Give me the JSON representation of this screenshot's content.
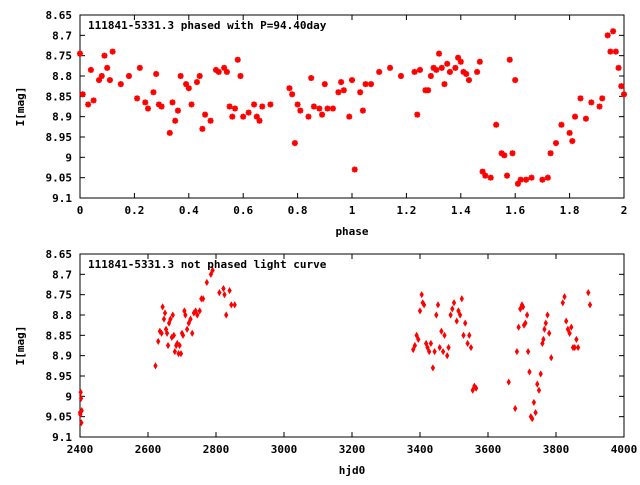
{
  "chart_data": [
    {
      "type": "scatter",
      "title": "111841-5331.3 phased with P=94.40day",
      "xlabel": "phase",
      "ylabel": "I[mag]",
      "xlim": [
        0,
        2
      ],
      "ylim": [
        8.65,
        9.1
      ],
      "y_inverted": true,
      "grid": false,
      "legend": "none",
      "marker": "star",
      "color": "#ff0000",
      "xticks": [
        "0",
        "0.2",
        "0.4",
        "0.6",
        "0.8",
        "1",
        "1.2",
        "1.4",
        "1.6",
        "1.8",
        "2"
      ],
      "yticks": [
        "8.65",
        "8.7",
        "8.75",
        "8.8",
        "8.85",
        "8.9",
        "8.95",
        "9",
        "9.05",
        "9.1"
      ],
      "series": [
        {
          "x": [
            0.0,
            0.01,
            0.03,
            0.04,
            0.05,
            0.07,
            0.08,
            0.09,
            0.1,
            0.11,
            0.12,
            0.15,
            0.18,
            0.21,
            0.22,
            0.24,
            0.25,
            0.27,
            0.28,
            0.29,
            0.3,
            0.33,
            0.34,
            0.35,
            0.36,
            0.37,
            0.39,
            0.4,
            0.41,
            0.43,
            0.44,
            0.45,
            0.46,
            0.48,
            0.5,
            0.51,
            0.53,
            0.54,
            0.55,
            0.56,
            0.57,
            0.58,
            0.59,
            0.6,
            0.62,
            0.64,
            0.65,
            0.66,
            0.67,
            0.7,
            0.77,
            0.78,
            0.79,
            0.8,
            0.81,
            0.84,
            0.85,
            0.86,
            0.88,
            0.89,
            0.9,
            0.91,
            0.93,
            0.95,
            0.96,
            0.97,
            0.99,
            1.0,
            1.01,
            1.03,
            1.04,
            1.05,
            1.07,
            1.1,
            1.14,
            1.18,
            1.23,
            1.24,
            1.25,
            1.27,
            1.28,
            1.29,
            1.3,
            1.31,
            1.32,
            1.33,
            1.34,
            1.35,
            1.36,
            1.38,
            1.39,
            1.4,
            1.41,
            1.42,
            1.43,
            1.46,
            1.47,
            1.48,
            1.49,
            1.51,
            1.53,
            1.55,
            1.56,
            1.57,
            1.58,
            1.59,
            1.6,
            1.61,
            1.62,
            1.64,
            1.66,
            1.7,
            1.72,
            1.73,
            1.75,
            1.77,
            1.8,
            1.81,
            1.82,
            1.84,
            1.86,
            1.88,
            1.91,
            1.92,
            1.94,
            1.95,
            1.96,
            1.97,
            1.98,
            1.99,
            2.0
          ],
          "y": [
            8.745,
            8.845,
            8.87,
            8.785,
            8.86,
            8.81,
            8.8,
            8.75,
            8.78,
            8.81,
            8.74,
            8.82,
            8.8,
            8.855,
            8.78,
            8.865,
            8.88,
            8.84,
            8.795,
            8.87,
            8.875,
            8.94,
            8.865,
            8.91,
            8.885,
            8.8,
            8.82,
            8.83,
            8.87,
            8.815,
            8.8,
            8.93,
            8.895,
            8.91,
            8.785,
            8.79,
            8.78,
            8.79,
            8.875,
            8.9,
            8.88,
            8.76,
            8.8,
            8.9,
            8.89,
            8.87,
            8.9,
            8.91,
            8.875,
            8.87,
            8.83,
            8.845,
            8.965,
            8.87,
            8.885,
            8.9,
            8.805,
            8.875,
            8.88,
            8.895,
            8.82,
            8.88,
            8.88,
            8.84,
            8.815,
            8.835,
            8.9,
            8.81,
            9.03,
            8.84,
            8.885,
            8.82,
            8.82,
            8.79,
            8.78,
            8.8,
            8.79,
            8.895,
            8.785,
            8.835,
            8.835,
            8.8,
            8.78,
            8.785,
            8.745,
            8.78,
            8.82,
            8.77,
            8.79,
            8.78,
            8.755,
            8.765,
            8.79,
            8.795,
            8.81,
            8.79,
            8.765,
            9.035,
            9.045,
            9.05,
            8.92,
            8.99,
            8.995,
            9.045,
            8.76,
            8.99,
            8.81,
            9.065,
            9.055,
            9.055,
            9.05,
            9.055,
            9.05,
            8.99,
            8.965,
            8.92,
            8.94,
            8.96,
            8.9,
            8.855,
            8.905,
            8.865,
            8.875,
            8.855,
            8.7,
            8.74,
            8.69,
            8.74,
            8.78,
            8.825,
            8.845
          ]
        }
      ]
    },
    {
      "type": "scatter",
      "title": "111841-5331.3 not phased light curve",
      "xlabel": "hjd0",
      "ylabel": "I[mag]",
      "xlim": [
        2400,
        4000
      ],
      "ylim": [
        8.65,
        9.1
      ],
      "y_inverted": true,
      "grid": false,
      "legend": "none",
      "marker": "diamond",
      "color": "#ff0000",
      "xticks": [
        "2400",
        "2600",
        "2800",
        "3000",
        "3200",
        "3400",
        "3600",
        "3800",
        "4000"
      ],
      "yticks": [
        "8.65",
        "8.7",
        "8.75",
        "8.8",
        "8.85",
        "8.9",
        "8.95",
        "9",
        "9.05",
        "9.1"
      ],
      "series": [
        {
          "x": [
            2400,
            2401,
            2402,
            2403,
            2404,
            2405,
            2622,
            2630,
            2635,
            2640,
            2643,
            2647,
            2650,
            2653,
            2656,
            2659,
            2662,
            2666,
            2670,
            2673,
            2676,
            2679,
            2683,
            2686,
            2690,
            2693,
            2697,
            2700,
            2703,
            2707,
            2710,
            2715,
            2720,
            2725,
            2730,
            2735,
            2740,
            2745,
            2752,
            2757,
            2762,
            2773,
            2785,
            2790,
            2810,
            2822,
            2825,
            2830,
            2840,
            2845,
            2855,
            3380,
            3385,
            3390,
            3395,
            3400,
            3405,
            3408,
            3412,
            3418,
            3422,
            3427,
            3432,
            3438,
            3443,
            3448,
            3453,
            3458,
            3463,
            3468,
            3472,
            3480,
            3484,
            3490,
            3495,
            3500,
            3508,
            3513,
            3518,
            3523,
            3528,
            3533,
            3540,
            3545,
            3550,
            3555,
            3560,
            3565,
            3661,
            3680,
            3685,
            3690,
            3695,
            3700,
            3703,
            3706,
            3710,
            3715,
            3718,
            3722,
            3726,
            3730,
            3735,
            3740,
            3745,
            3750,
            3755,
            3760,
            3763,
            3766,
            3770,
            3775,
            3780,
            3786,
            3820,
            3825,
            3830,
            3835,
            3840,
            3845,
            3850,
            3855,
            3860,
            3865,
            3895,
            3900
          ],
          "y": [
            9.04,
            9.045,
            8.99,
            9.005,
            9.065,
            9.035,
            8.925,
            8.865,
            8.84,
            8.845,
            8.78,
            8.81,
            8.795,
            8.835,
            8.845,
            8.875,
            8.82,
            8.81,
            8.855,
            8.8,
            8.85,
            8.89,
            8.875,
            8.87,
            8.895,
            8.875,
            8.895,
            8.845,
            8.85,
            8.79,
            8.8,
            8.835,
            8.82,
            8.81,
            8.845,
            8.795,
            8.79,
            8.8,
            8.79,
            8.76,
            8.76,
            8.72,
            8.7,
            8.69,
            8.745,
            8.735,
            8.75,
            8.8,
            8.74,
            8.775,
            8.775,
            8.885,
            8.875,
            8.85,
            8.86,
            8.79,
            8.75,
            8.77,
            8.775,
            8.87,
            8.88,
            8.89,
            8.87,
            8.93,
            8.89,
            8.8,
            8.775,
            8.88,
            8.84,
            8.89,
            8.85,
            8.9,
            8.88,
            8.8,
            8.785,
            8.77,
            8.815,
            8.79,
            8.8,
            8.76,
            8.85,
            8.82,
            8.87,
            8.85,
            8.88,
            8.985,
            8.975,
            8.98,
            8.965,
            9.03,
            8.89,
            8.83,
            8.785,
            8.775,
            8.78,
            8.825,
            8.82,
            8.8,
            8.89,
            8.94,
            9.05,
            9.055,
            9.015,
            9.04,
            8.97,
            8.985,
            8.945,
            8.87,
            8.86,
            8.835,
            8.82,
            8.8,
            8.845,
            8.905,
            8.77,
            8.755,
            8.815,
            8.835,
            8.845,
            8.83,
            8.88,
            8.88,
            8.86,
            8.88,
            8.745,
            8.775
          ]
        }
      ]
    }
  ]
}
